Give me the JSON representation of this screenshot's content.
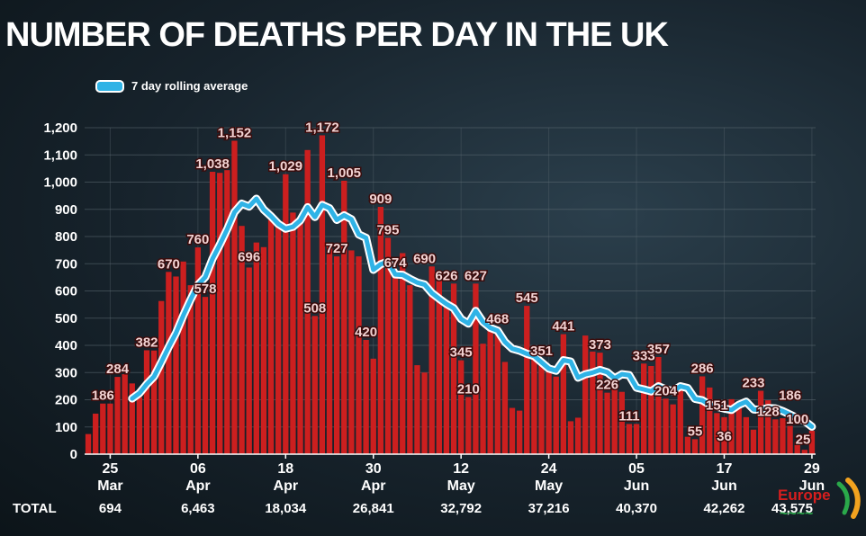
{
  "colors": {
    "bar": "#cc1f1f",
    "average_line": "#2fb3e6",
    "label_fill": "#f2d3d3",
    "text": "#ffffff",
    "grid": "#5c6a72"
  },
  "logo": "Europe",
  "chart_data": {
    "type": "bar",
    "title": "NUMBER OF DEATHS PER DAY IN THE UK",
    "ylim": [
      0,
      1200
    ],
    "yticks": [
      0,
      100,
      200,
      300,
      400,
      500,
      600,
      700,
      800,
      900,
      1000,
      1100,
      1200
    ],
    "ytick_labels": [
      "0",
      "100",
      "200",
      "300",
      "400",
      "500",
      "600",
      "700",
      "800",
      "900",
      "1,000",
      "1,100",
      "1,200"
    ],
    "grid": true,
    "legend": {
      "placement": "top-left",
      "entries": [
        "7 day rolling average"
      ]
    },
    "x_ticks": [
      {
        "date": "2020-03-25",
        "day": "25",
        "month": "Mar"
      },
      {
        "date": "2020-04-06",
        "day": "06",
        "month": "Apr"
      },
      {
        "date": "2020-04-18",
        "day": "18",
        "month": "Apr"
      },
      {
        "date": "2020-04-30",
        "day": "30",
        "month": "Apr"
      },
      {
        "date": "2020-05-12",
        "day": "12",
        "month": "May"
      },
      {
        "date": "2020-05-24",
        "day": "24",
        "month": "May"
      },
      {
        "date": "2020-06-05",
        "day": "05",
        "month": "Jun"
      },
      {
        "date": "2020-06-17",
        "day": "17",
        "month": "Jun"
      },
      {
        "date": "2020-06-29",
        "day": "29",
        "month": "Jun"
      }
    ],
    "totals_label": "TOTAL",
    "totals": [
      {
        "date": "2020-03-25",
        "label": "694"
      },
      {
        "date": "2020-04-06",
        "label": "6,463"
      },
      {
        "date": "2020-04-18",
        "label": "18,034"
      },
      {
        "date": "2020-04-30",
        "label": "26,841"
      },
      {
        "date": "2020-05-12",
        "label": "32,792"
      },
      {
        "date": "2020-05-24",
        "label": "37,216"
      },
      {
        "date": "2020-06-05",
        "label": "40,370"
      },
      {
        "date": "2020-06-17",
        "label": "42,262"
      },
      {
        "date": "2020-06-29",
        "label": "43,575"
      }
    ],
    "dates": [
      "2020-03-22",
      "2020-03-23",
      "2020-03-24",
      "2020-03-25",
      "2020-03-26",
      "2020-03-27",
      "2020-03-28",
      "2020-03-29",
      "2020-03-30",
      "2020-03-31",
      "2020-04-01",
      "2020-04-02",
      "2020-04-03",
      "2020-04-04",
      "2020-04-05",
      "2020-04-06",
      "2020-04-07",
      "2020-04-08",
      "2020-04-09",
      "2020-04-10",
      "2020-04-11",
      "2020-04-12",
      "2020-04-13",
      "2020-04-14",
      "2020-04-15",
      "2020-04-16",
      "2020-04-17",
      "2020-04-18",
      "2020-04-19",
      "2020-04-20",
      "2020-04-21",
      "2020-04-22",
      "2020-04-23",
      "2020-04-24",
      "2020-04-25",
      "2020-04-26",
      "2020-04-27",
      "2020-04-28",
      "2020-04-29",
      "2020-04-30",
      "2020-05-01",
      "2020-05-02",
      "2020-05-03",
      "2020-05-04",
      "2020-05-05",
      "2020-05-06",
      "2020-05-07",
      "2020-05-08",
      "2020-05-09",
      "2020-05-10",
      "2020-05-11",
      "2020-05-12",
      "2020-05-13",
      "2020-05-14",
      "2020-05-15",
      "2020-05-16",
      "2020-05-17",
      "2020-05-18",
      "2020-05-19",
      "2020-05-20",
      "2020-05-21",
      "2020-05-22",
      "2020-05-23",
      "2020-05-24",
      "2020-05-25",
      "2020-05-26",
      "2020-05-27",
      "2020-05-28",
      "2020-05-29",
      "2020-05-30",
      "2020-05-31",
      "2020-06-01",
      "2020-06-02",
      "2020-06-03",
      "2020-06-04",
      "2020-06-05",
      "2020-06-06",
      "2020-06-07",
      "2020-06-08",
      "2020-06-09",
      "2020-06-10",
      "2020-06-11",
      "2020-06-12",
      "2020-06-13",
      "2020-06-14",
      "2020-06-15",
      "2020-06-16",
      "2020-06-17",
      "2020-06-18",
      "2020-06-19",
      "2020-06-20",
      "2020-06-21",
      "2020-06-22",
      "2020-06-23",
      "2020-06-24",
      "2020-06-25",
      "2020-06-26",
      "2020-06-27",
      "2020-06-28",
      "2020-06-29"
    ],
    "values": [
      74,
      149,
      186,
      186,
      284,
      294,
      260,
      209,
      382,
      381,
      563,
      670,
      653,
      708,
      621,
      760,
      578,
      1038,
      1034,
      1044,
      1152,
      839,
      686,
      778,
      761,
      861,
      847,
      1029,
      888,
      850,
      1118,
      508,
      1172,
      765,
      727,
      1005,
      749,
      727,
      420,
      351,
      909,
      795,
      674,
      739,
      621,
      327,
      300,
      690,
      649,
      539,
      627,
      345,
      210,
      627,
      406,
      494,
      468,
      339,
      170,
      160,
      545,
      349,
      335,
      304,
      285,
      441,
      121,
      134,
      436,
      377,
      373,
      226,
      282,
      229,
      111,
      111,
      333,
      324,
      357,
      204,
      183,
      236,
      64,
      55,
      286,
      245,
      151,
      136,
      202,
      192,
      136,
      90,
      233,
      198,
      128,
      132,
      104,
      44,
      16,
      86
    ]
  }
}
